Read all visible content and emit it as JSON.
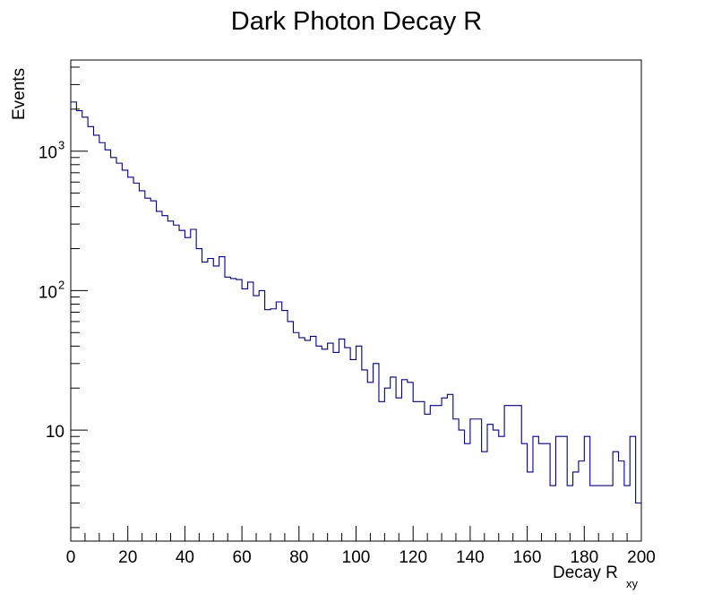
{
  "chart_data": {
    "type": "histogram-step",
    "title": "Dark Photon Decay R",
    "xlabel": "Decay R",
    "xlabel_sub": "xy",
    "ylabel": "Events",
    "xlim": [
      0,
      200
    ],
    "ylim": [
      1.6,
      4500
    ],
    "y_scale": "log",
    "bin_width": 2,
    "line_color": "#000080",
    "x_ticks": [
      "0",
      "20",
      "40",
      "60",
      "80",
      "100",
      "120",
      "140",
      "160",
      "180",
      "200"
    ],
    "y_ticks": [
      {
        "value": 10,
        "base": "10",
        "exp": ""
      },
      {
        "value": 100,
        "base": "10",
        "exp": "2"
      },
      {
        "value": 1000,
        "base": "10",
        "exp": "3"
      }
    ],
    "values": [
      2250,
      1950,
      1750,
      1500,
      1300,
      1150,
      1020,
      900,
      820,
      730,
      650,
      590,
      520,
      460,
      440,
      370,
      345,
      315,
      295,
      270,
      240,
      275,
      200,
      160,
      170,
      150,
      175,
      125,
      122,
      120,
      103,
      115,
      92,
      100,
      73,
      74,
      83,
      72,
      60,
      50,
      46,
      44,
      47,
      40,
      38,
      42,
      36,
      45,
      39,
      32,
      40,
      27,
      22,
      30,
      16,
      20,
      24,
      17,
      23,
      22,
      16,
      16,
      13,
      15,
      15,
      17,
      18,
      12,
      10,
      8,
      12,
      12,
      7,
      11,
      10,
      9,
      15,
      15,
      15,
      8,
      5,
      9,
      8,
      8,
      4,
      9,
      9,
      4,
      5,
      6,
      9,
      4,
      4,
      4,
      4,
      7,
      6,
      4,
      9,
      3
    ]
  }
}
